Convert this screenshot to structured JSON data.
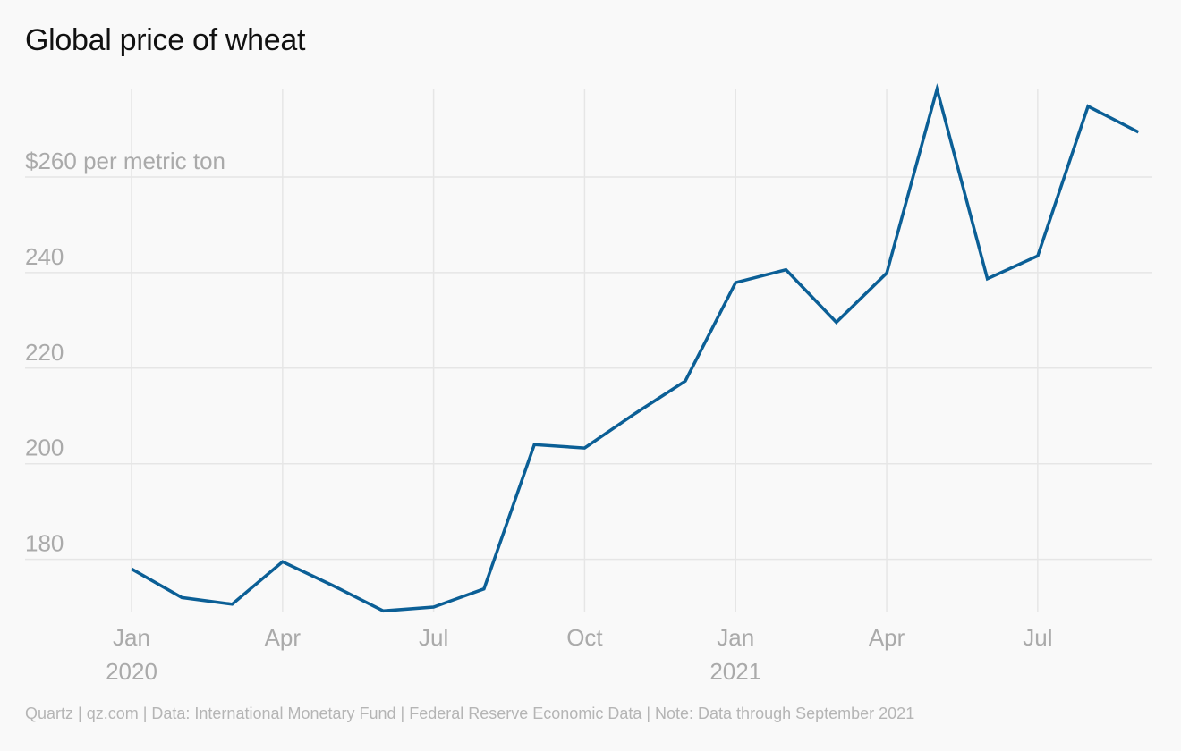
{
  "chart_data": {
    "type": "line",
    "title": "Global price of wheat",
    "ylabel": "$260 per metric ton",
    "source": "Quartz | qz.com | Data: International Monetary Fund | Federal Reserve Economic Data | Note: Data through September 2021",
    "ylim": [
      168,
      278
    ],
    "y_ticks": [
      {
        "value": 180,
        "label": "180"
      },
      {
        "value": 200,
        "label": "200"
      },
      {
        "value": 220,
        "label": "220"
      },
      {
        "value": 240,
        "label": "240"
      },
      {
        "value": 260,
        "label": "$260 per metric ton"
      }
    ],
    "x_ticks": [
      {
        "date": "2020-01",
        "label": "Jan",
        "year": "2020"
      },
      {
        "date": "2020-04",
        "label": "Apr",
        "year": ""
      },
      {
        "date": "2020-07",
        "label": "Jul",
        "year": ""
      },
      {
        "date": "2020-10",
        "label": "Oct",
        "year": ""
      },
      {
        "date": "2021-01",
        "label": "Jan",
        "year": "2021"
      },
      {
        "date": "2021-04",
        "label": "Apr",
        "year": ""
      },
      {
        "date": "2021-07",
        "label": "Jul",
        "year": ""
      }
    ],
    "grid": true,
    "line_color": "#0b5f96",
    "series": [
      {
        "name": "",
        "x": [
          "2020-01",
          "2020-02",
          "2020-03",
          "2020-04",
          "2020-05",
          "2020-06",
          "2020-07",
          "2020-08",
          "2020-09",
          "2020-10",
          "2020-11",
          "2020-12",
          "2021-01",
          "2021-02",
          "2021-03",
          "2021-04",
          "2021-05",
          "2021-06",
          "2021-07",
          "2021-08",
          "2021-09"
        ],
        "values": [
          178.0,
          172.0,
          170.6,
          179.5,
          174.5,
          169.2,
          170.0,
          173.8,
          204.0,
          203.3,
          210.5,
          217.3,
          237.9,
          240.6,
          229.6,
          239.9,
          278.4,
          238.7,
          243.5,
          274.8,
          269.4
        ]
      }
    ]
  }
}
